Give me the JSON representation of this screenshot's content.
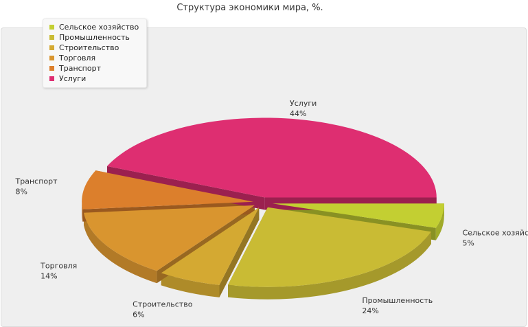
{
  "chart_data": {
    "type": "pie",
    "title": "Структура экономики мира, %.",
    "categories": [
      "Сельское хозяйство",
      "Промышленность",
      "Строительство",
      "Торговля",
      "Транспорт",
      "Услуги"
    ],
    "values": [
      5,
      24,
      6,
      14,
      8,
      44
    ],
    "value_labels": [
      "5%",
      "24%",
      "6%",
      "14%",
      "8%",
      "44%"
    ],
    "colors": [
      "#c3cf32",
      "#c9bb34",
      "#d4a932",
      "#d9952f",
      "#dc7f2c",
      "#de2e71"
    ],
    "exploded": true,
    "style": "3d",
    "legend_position": "top-left"
  }
}
